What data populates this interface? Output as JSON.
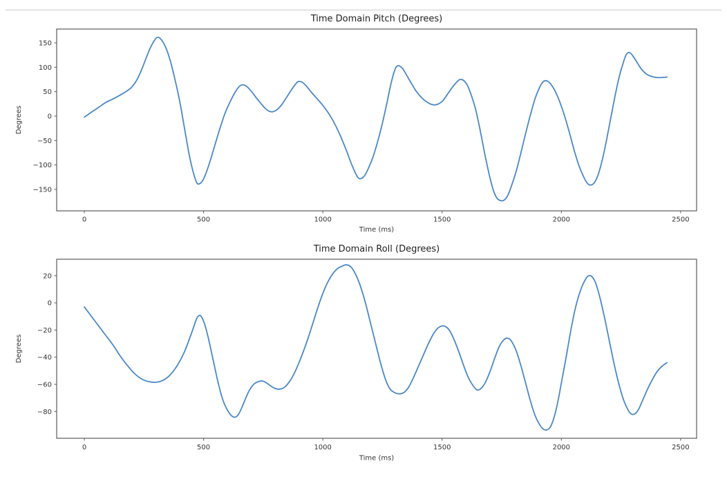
{
  "figure": {
    "background": "#ffffff",
    "top_border_color": "#cbcbcb"
  },
  "chart_data": [
    {
      "type": "line",
      "title": "Time Domain Pitch (Degrees)",
      "xlabel": "Time (ms)",
      "ylabel": "Degrees",
      "line_color": "#4a87c7",
      "grid": false,
      "legend_position": "none",
      "xlim": [
        -116,
        2567
      ],
      "ylim": [
        -194,
        178.3
      ],
      "xticks": [
        0,
        500,
        1000,
        1500,
        2000,
        2500
      ],
      "xtick_labels": [
        "0",
        "500",
        "1000",
        "1500",
        "2000",
        "2500"
      ],
      "yticks": [
        150,
        100,
        50,
        0,
        -50,
        -100,
        -150
      ],
      "ytick_labels": [
        "150",
        "100",
        "50",
        "0",
        "−50",
        "−100",
        "−150"
      ],
      "series": [
        {
          "name": "pitch",
          "x": [
            0,
            30,
            60,
            90,
            120,
            150,
            180,
            200,
            220,
            240,
            260,
            275,
            290,
            305,
            320,
            340,
            360,
            380,
            400,
            420,
            440,
            455,
            470,
            480,
            495,
            510,
            530,
            550,
            570,
            590,
            610,
            630,
            650,
            665,
            680,
            700,
            720,
            740,
            760,
            775,
            790,
            810,
            830,
            850,
            870,
            890,
            900,
            915,
            930,
            950,
            975,
            1000,
            1025,
            1050,
            1075,
            1100,
            1120,
            1140,
            1150,
            1160,
            1175,
            1190,
            1210,
            1230,
            1250,
            1270,
            1285,
            1300,
            1310,
            1320,
            1335,
            1350,
            1370,
            1390,
            1410,
            1430,
            1450,
            1465,
            1480,
            1500,
            1520,
            1540,
            1560,
            1575,
            1590,
            1605,
            1620,
            1640,
            1660,
            1680,
            1700,
            1715,
            1730,
            1745,
            1760,
            1775,
            1790,
            1810,
            1830,
            1850,
            1870,
            1890,
            1910,
            1925,
            1940,
            1955,
            1975,
            1995,
            2015,
            2035,
            2055,
            2075,
            2095,
            2110,
            2125,
            2140,
            2155,
            2170,
            2185,
            2200,
            2215,
            2230,
            2245,
            2260,
            2270,
            2280,
            2290,
            2300,
            2315,
            2330,
            2345,
            2360,
            2380,
            2400,
            2420,
            2443
          ],
          "y": [
            -2,
            8,
            18,
            28,
            35,
            43,
            52,
            60,
            74,
            95,
            120,
            138,
            152,
            161,
            158,
            142,
            114,
            75,
            30,
            -25,
            -80,
            -112,
            -135,
            -139,
            -133,
            -117,
            -88,
            -55,
            -23,
            6,
            28,
            47,
            61,
            64,
            61,
            51,
            38,
            26,
            15,
            10,
            9,
            14,
            25,
            40,
            55,
            68,
            71,
            69,
            62,
            50,
            36,
            22,
            5,
            -16,
            -42,
            -72,
            -98,
            -120,
            -127,
            -128,
            -122,
            -108,
            -84,
            -52,
            -14,
            30,
            65,
            92,
            102,
            103,
            97,
            85,
            68,
            52,
            40,
            31,
            25,
            23,
            24,
            30,
            43,
            57,
            69,
            75,
            73,
            64,
            46,
            15,
            -30,
            -80,
            -125,
            -152,
            -168,
            -173,
            -172,
            -163,
            -144,
            -114,
            -76,
            -36,
            2,
            36,
            60,
            71,
            72,
            66,
            50,
            27,
            -2,
            -36,
            -72,
            -103,
            -126,
            -138,
            -141,
            -135,
            -119,
            -93,
            -60,
            -22,
            16,
            53,
            85,
            110,
            124,
            130,
            129,
            123,
            112,
            100,
            91,
            85,
            81,
            79,
            79,
            80
          ]
        }
      ]
    },
    {
      "type": "line",
      "title": "Time Domain Roll (Degrees)",
      "xlabel": "Time (ms)",
      "ylabel": "Degrees",
      "line_color": "#4a87c7",
      "grid": false,
      "legend_position": "none",
      "xlim": [
        -116,
        2567
      ],
      "ylim": [
        -99.7,
        32.1
      ],
      "xticks": [
        0,
        500,
        1000,
        1500,
        2000,
        2500
      ],
      "xtick_labels": [
        "0",
        "500",
        "1000",
        "1500",
        "2000",
        "2500"
      ],
      "yticks": [
        20,
        0,
        -20,
        -40,
        -60,
        -80
      ],
      "ytick_labels": [
        "20",
        "0",
        "−20",
        "−40",
        "−60",
        "−80"
      ],
      "series": [
        {
          "name": "roll",
          "x": [
            0,
            30,
            60,
            90,
            120,
            150,
            180,
            210,
            240,
            270,
            300,
            330,
            360,
            390,
            420,
            450,
            470,
            480,
            490,
            505,
            520,
            540,
            560,
            580,
            600,
            620,
            635,
            650,
            670,
            690,
            710,
            730,
            745,
            760,
            780,
            800,
            820,
            840,
            860,
            880,
            900,
            920,
            940,
            960,
            980,
            1000,
            1020,
            1040,
            1060,
            1080,
            1100,
            1120,
            1140,
            1160,
            1180,
            1200,
            1220,
            1240,
            1260,
            1280,
            1300,
            1320,
            1340,
            1360,
            1380,
            1400,
            1420,
            1440,
            1460,
            1480,
            1500,
            1515,
            1530,
            1550,
            1570,
            1590,
            1610,
            1630,
            1645,
            1660,
            1680,
            1700,
            1720,
            1740,
            1760,
            1775,
            1790,
            1810,
            1830,
            1850,
            1870,
            1890,
            1910,
            1925,
            1940,
            1955,
            1970,
            1985,
            2000,
            2020,
            2040,
            2060,
            2080,
            2100,
            2115,
            2130,
            2145,
            2160,
            2180,
            2200,
            2220,
            2240,
            2260,
            2280,
            2295,
            2310,
            2325,
            2340,
            2360,
            2380,
            2400,
            2420,
            2443
          ],
          "y": [
            -3,
            -10,
            -17,
            -24,
            -31,
            -39,
            -46,
            -52,
            -56,
            -58,
            -58.5,
            -57,
            -53,
            -46,
            -36,
            -22,
            -12,
            -9.5,
            -10,
            -16,
            -26,
            -42,
            -58,
            -71,
            -79,
            -83.5,
            -84,
            -81,
            -73,
            -65,
            -60,
            -58,
            -57.5,
            -58.5,
            -61,
            -63,
            -63.5,
            -62,
            -58,
            -52,
            -44,
            -35,
            -25,
            -14,
            -3,
            7,
            15,
            21,
            25,
            27,
            28,
            26,
            20,
            11,
            -1,
            -15,
            -29,
            -43,
            -55,
            -63,
            -66,
            -67,
            -66,
            -62,
            -55,
            -47,
            -39,
            -31,
            -24,
            -19,
            -17,
            -17.5,
            -20,
            -27,
            -36,
            -46,
            -55,
            -61,
            -64,
            -63.5,
            -59,
            -51,
            -41,
            -32,
            -27,
            -26,
            -28,
            -35,
            -46,
            -59,
            -72,
            -83,
            -90,
            -93,
            -93.5,
            -91,
            -84,
            -73,
            -59,
            -40,
            -20,
            -3,
            9,
            17,
            20,
            19,
            14,
            5,
            -10,
            -27,
            -44,
            -59,
            -71,
            -79,
            -82,
            -81.5,
            -78,
            -72,
            -64,
            -57,
            -51,
            -47,
            -44
          ]
        }
      ]
    }
  ]
}
